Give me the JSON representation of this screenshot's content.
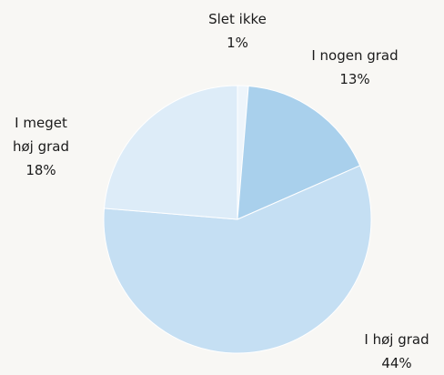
{
  "chart_data": {
    "type": "pie",
    "categories": [
      "Slet ikke",
      "I nogen grad",
      "I høj grad",
      "I meget høj grad"
    ],
    "values": [
      1,
      13,
      44,
      18
    ],
    "value_labels": [
      "1%",
      "13%",
      "44%",
      "18%"
    ],
    "colors": [
      "#eef5fb",
      "#a9d0ec",
      "#c5dff3",
      "#ddecf8"
    ]
  }
}
